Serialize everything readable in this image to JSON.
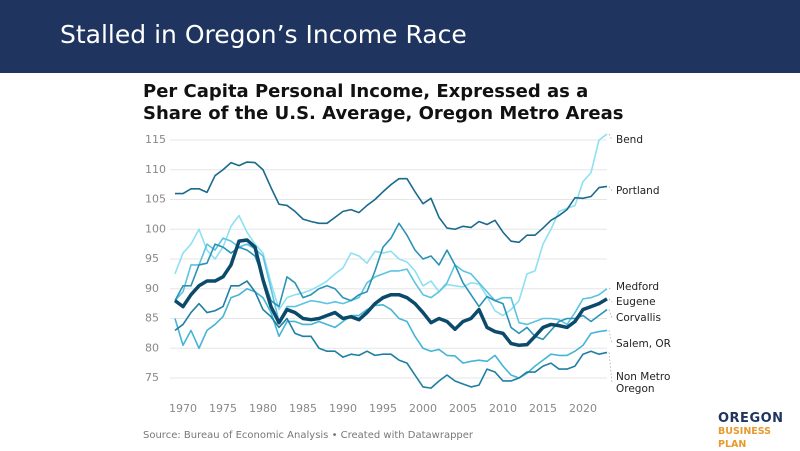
{
  "header": {
    "title": "Stalled in Oregon’s Income Race"
  },
  "chart_data": {
    "type": "line",
    "title": "Per Capita Personal Income, Expressed as a Share of the U.S. Average, Oregon Metro Areas",
    "source": "Source: Bureau of Economic Analysis • Created with Datawrapper",
    "x": [
      1969,
      1970,
      1971,
      1972,
      1973,
      1974,
      1975,
      1976,
      1977,
      1978,
      1979,
      1980,
      1981,
      1982,
      1983,
      1984,
      1985,
      1986,
      1987,
      1988,
      1989,
      1990,
      1991,
      1992,
      1993,
      1994,
      1995,
      1996,
      1997,
      1998,
      1999,
      2000,
      2001,
      2002,
      2003,
      2004,
      2005,
      2006,
      2007,
      2008,
      2009,
      2010,
      2011,
      2012,
      2013,
      2014,
      2015,
      2016,
      2017,
      2018,
      2019,
      2020,
      2021,
      2022,
      2023
    ],
    "xlim": [
      1969,
      2023
    ],
    "xticks": [
      1970,
      1975,
      1980,
      1985,
      1990,
      1995,
      2000,
      2005,
      2010,
      2015,
      2020
    ],
    "ylim": [
      72,
      117
    ],
    "yticks": [
      75,
      80,
      85,
      90,
      95,
      100,
      105,
      110,
      115
    ],
    "grid": true,
    "series": [
      {
        "name": "Bend",
        "color": "#8ee0f2",
        "values": [
          92.5,
          96,
          97.5,
          100,
          96.5,
          95,
          97,
          100.5,
          102.3,
          99.5,
          97.5,
          96,
          91,
          86.5,
          88.5,
          89,
          89.3,
          89.8,
          90.5,
          91.3,
          92.5,
          93.5,
          96,
          95.5,
          94.3,
          96.3,
          96,
          96.3,
          95,
          94.5,
          93,
          90.5,
          91.3,
          89.5,
          90.7,
          90.5,
          90.3,
          91,
          90.8,
          88.7,
          86.3,
          85.5,
          86.5,
          88,
          92.5,
          93,
          97.5,
          100,
          103,
          103.5,
          104,
          108,
          109.5,
          115,
          116
        ]
      },
      {
        "name": "Portland",
        "color": "#1b6a8c",
        "values": [
          106,
          106,
          106.8,
          106.8,
          106.2,
          109,
          110,
          111.2,
          110.7,
          111.3,
          111.2,
          110,
          107,
          104.2,
          104,
          103,
          101.7,
          101.3,
          101,
          101,
          102,
          103,
          103.3,
          102.8,
          104,
          105,
          106.3,
          107.5,
          108.5,
          108.5,
          106.3,
          104.3,
          105.2,
          102,
          100.2,
          100,
          100.5,
          100.3,
          101.3,
          100.8,
          101.5,
          99.5,
          98,
          97.8,
          99,
          99,
          100.2,
          101.5,
          102.3,
          103.3,
          105.3,
          105.2,
          105.5,
          107,
          107.2
        ]
      },
      {
        "name": "Medford",
        "color": "#5cc3e0",
        "values": [
          88,
          89.5,
          94,
          94,
          97.5,
          96.5,
          98.5,
          98,
          97,
          97.5,
          96.7,
          95.5,
          90,
          84.5,
          87,
          87,
          87.5,
          88,
          87.8,
          87.5,
          87.8,
          87.5,
          88,
          88.5,
          91,
          92,
          92.5,
          93,
          93,
          93.3,
          91,
          89,
          88.5,
          89.5,
          91,
          94,
          93,
          92.5,
          91,
          89.5,
          88,
          88.5,
          88.5,
          84.3,
          84,
          84.5,
          85,
          85,
          84.8,
          84,
          86,
          88.3,
          88.5,
          89,
          90
        ]
      },
      {
        "name": "Corvallis",
        "color": "#2b93b6",
        "values": [
          88,
          90.5,
          90.5,
          94,
          94.3,
          97.5,
          97,
          96,
          97,
          96.5,
          95.5,
          92,
          88,
          87,
          92,
          91,
          88.5,
          89,
          90,
          90.5,
          90,
          88.5,
          88,
          89,
          89.5,
          93,
          97,
          98.5,
          101,
          99,
          96.5,
          95,
          95.5,
          94,
          96.5,
          94,
          91,
          89,
          87,
          88.7,
          88,
          87.5,
          83.5,
          82.5,
          83.5,
          82,
          81.5,
          83,
          84.5,
          85,
          85,
          85.5,
          84.5,
          85.5,
          86.5
        ]
      },
      {
        "name": "Salem, OR",
        "color": "#45b5d6",
        "values": [
          85,
          80.5,
          83,
          80,
          83,
          84,
          85.3,
          88.5,
          89,
          90,
          89.5,
          88.5,
          86,
          82,
          84.5,
          84.5,
          84,
          84,
          84.5,
          84,
          83.5,
          84.5,
          85.5,
          85.5,
          86.5,
          87.2,
          87.3,
          86.5,
          85,
          84.5,
          82,
          80,
          79.5,
          79.8,
          78.8,
          78.7,
          77.5,
          77.8,
          78,
          77.8,
          78.8,
          77,
          75.5,
          75,
          75.8,
          77,
          78,
          79,
          78.8,
          78.8,
          79.5,
          80.5,
          82.5,
          82.8,
          83
        ]
      },
      {
        "name": "Non Metro Oregon",
        "color": "#1f7ea3",
        "values": [
          83,
          84,
          86,
          87.5,
          86,
          86.3,
          87,
          90.5,
          90.5,
          91.3,
          89.5,
          86.5,
          85.3,
          83.5,
          85,
          82.5,
          82,
          82,
          80,
          79.5,
          79.5,
          78.5,
          79,
          78.8,
          79.5,
          78.8,
          79,
          79,
          78,
          77.5,
          75.5,
          73.5,
          73.3,
          74.5,
          75.5,
          74.5,
          74,
          73.5,
          73.8,
          76.5,
          76,
          74.5,
          74.5,
          75,
          76,
          76,
          77,
          77.5,
          76.5,
          76.5,
          77,
          79,
          79.5,
          79,
          79.3
        ]
      },
      {
        "name": "Eugene",
        "color": "#0b4a6b",
        "highlight": true,
        "values": [
          88,
          87,
          89,
          90.5,
          91.3,
          91.3,
          92,
          94,
          98,
          98.2,
          97,
          91.5,
          87,
          84.3,
          86.5,
          86,
          85,
          84.8,
          85,
          85.5,
          86,
          85,
          85.3,
          84.8,
          86,
          87.5,
          88.5,
          89,
          89,
          88.5,
          87.5,
          86,
          84.3,
          85,
          84.5,
          83.2,
          84.5,
          85,
          86.5,
          83.5,
          82.8,
          82.5,
          80.8,
          80.5,
          80.6,
          82,
          83.5,
          84,
          83.8,
          83.5,
          84.5,
          86.5,
          87,
          87.5,
          88.3
        ]
      }
    ]
  },
  "logo": {
    "line1": "OREGON",
    "line2": "BUSINESS PLAN"
  }
}
